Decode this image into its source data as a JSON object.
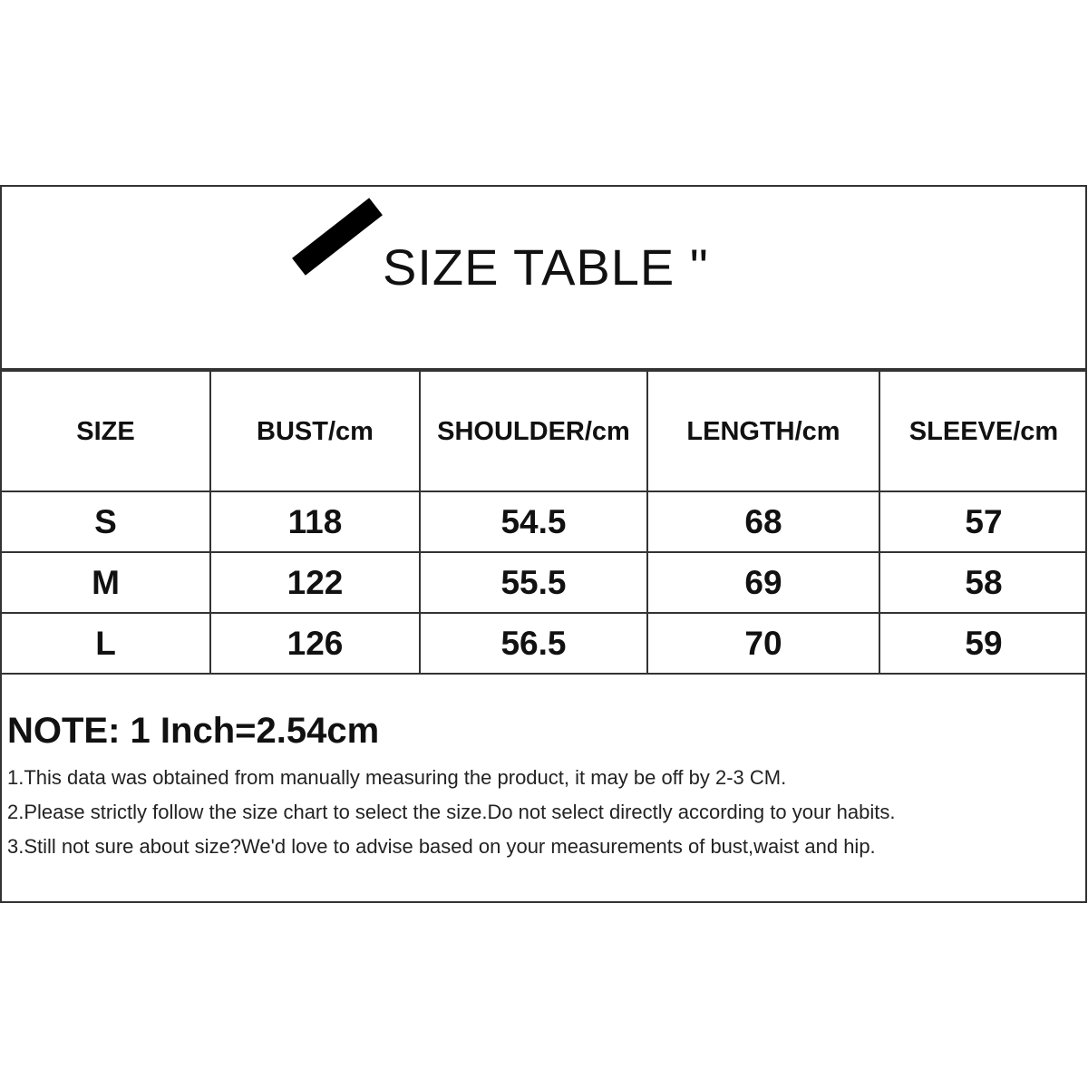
{
  "title": "SIZE TABLE \"",
  "table": {
    "headers": [
      "SIZE",
      "BUST/cm",
      "SHOULDER/cm",
      "LENGTH/cm",
      "SLEEVE/cm"
    ],
    "rows": [
      [
        "S",
        "118",
        "54.5",
        "68",
        "57"
      ],
      [
        "M",
        "122",
        "55.5",
        "69",
        "58"
      ],
      [
        "L",
        "126",
        "56.5",
        "70",
        "59"
      ]
    ]
  },
  "notes": {
    "title": "NOTE: 1 Inch=2.54cm",
    "lines": [
      "1.This data was obtained from manually measuring the product, it may be off by 2-3 CM.",
      "2.Please strictly follow the size chart to select the size.Do not select directly according to your habits.",
      "3.Still not sure about size?We'd love to advise based on your measurements of bust,waist and hip."
    ]
  }
}
